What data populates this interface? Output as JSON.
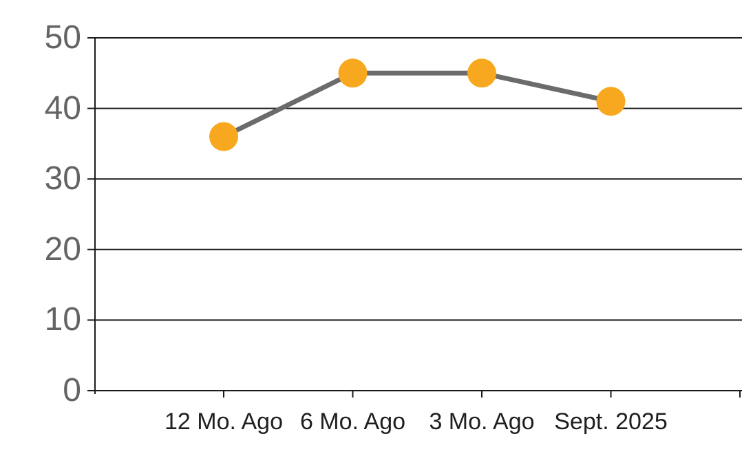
{
  "chart_data": {
    "type": "line",
    "title": "",
    "xlabel": "",
    "ylabel": "",
    "categories": [
      "12 Mo. Ago",
      "6 Mo. Ago",
      "3 Mo. Ago",
      "Sept. 2025"
    ],
    "values": [
      36,
      45,
      45,
      41
    ],
    "ylim": [
      0,
      50
    ],
    "y_ticks": [
      "0",
      "10",
      "20",
      "30",
      "40",
      "50"
    ],
    "grid": "horizontal",
    "legend": "none",
    "colors": {
      "marker": "#F8A81E",
      "line": "#6B6B6B",
      "axis": "#1A1A1A",
      "y_tick_label": "#646464",
      "x_tick_label": "#1F1F1F",
      "background": "#FFFFFF"
    }
  }
}
